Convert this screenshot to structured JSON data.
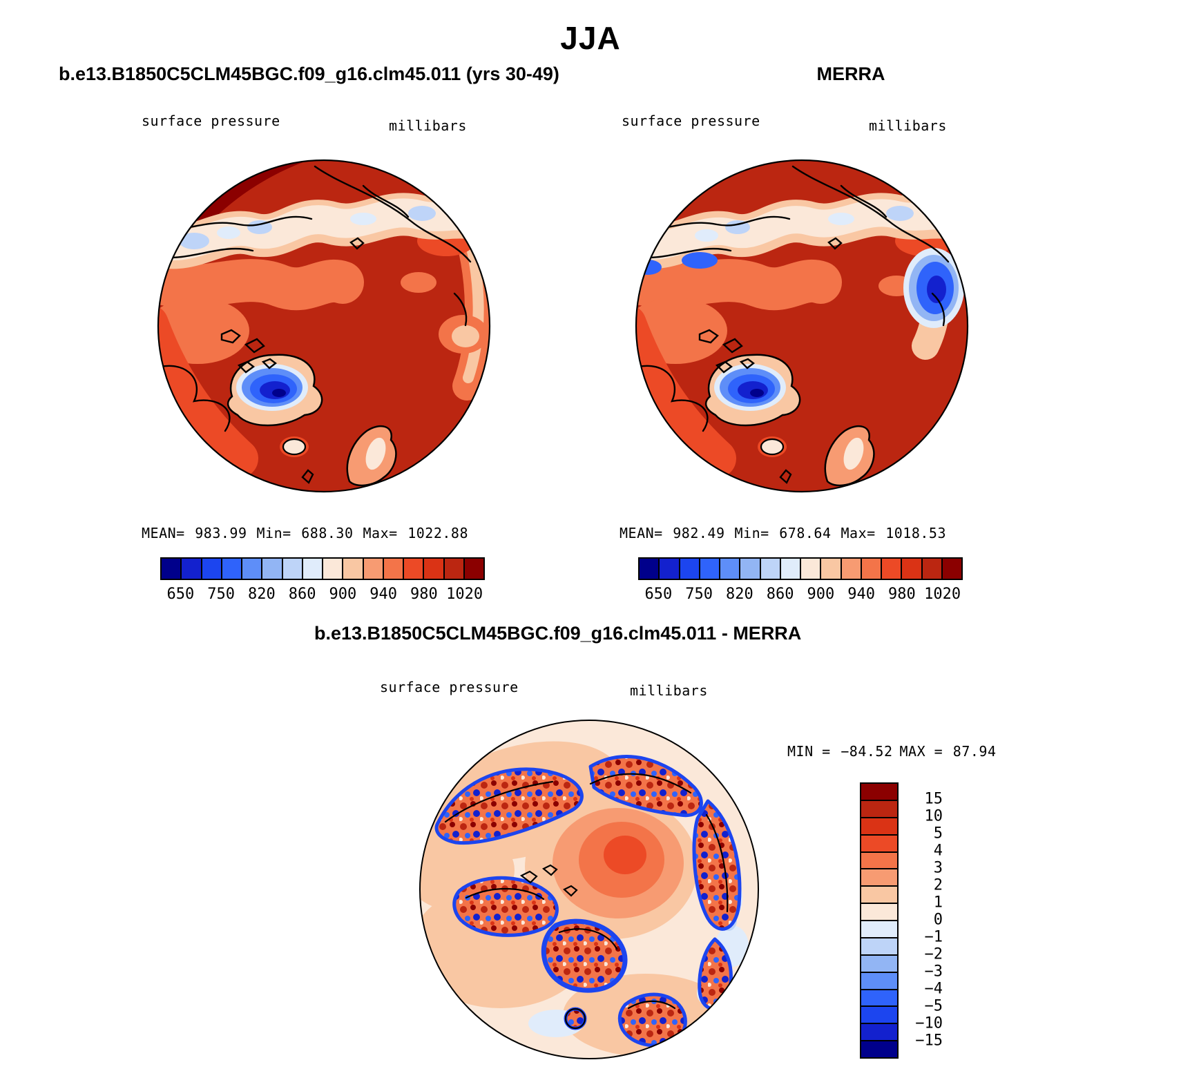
{
  "figure": {
    "season_title": "JJA"
  },
  "panels": {
    "model": {
      "title": "b.e13.B1850C5CLM45BGC.f09_g16.clm45.011 (yrs 30-49)",
      "field": "surface pressure",
      "units": "millibars",
      "stats": {
        "mean_label": "MEAN=",
        "mean": "983.99",
        "min_label": "Min=",
        "min": "688.30",
        "max_label": "Max=",
        "max": "1022.88"
      }
    },
    "merra": {
      "title": "MERRA",
      "field": "surface pressure",
      "units": "millibars",
      "stats": {
        "mean_label": "MEAN=",
        "mean": "982.49",
        "min_label": "Min=",
        "min": "678.64",
        "max_label": "Max=",
        "max": "1018.53"
      }
    },
    "diff": {
      "title": "b.e13.B1850C5CLM45BGC.f09_g16.clm45.011 - MERRA",
      "field": "surface pressure",
      "units": "millibars",
      "stats": {
        "min_label": "MIN =",
        "min": "−84.52",
        "max_label": "MAX =",
        "max": "87.94"
      }
    }
  },
  "colors": {
    "ink": "#000000",
    "background": "#FFFFFF",
    "palette_blue_to_red": [
      "#00008B",
      "#1321CE",
      "#1C45EF",
      "#2F63FB",
      "#5E8EF8",
      "#92B5F4",
      "#BED4F8",
      "#E0ECFB",
      "#FBE8D9",
      "#F9C7A3",
      "#F79B72",
      "#F37449",
      "#EC4A26",
      "#DA3315",
      "#BB2611",
      "#8B0000"
    ]
  },
  "colorbars": {
    "pressure": {
      "orientation": "horizontal",
      "colors": [
        "#00008B",
        "#1321CE",
        "#1C45EF",
        "#2F63FB",
        "#5E8EF8",
        "#92B5F4",
        "#BED4F8",
        "#E0ECFB",
        "#FBE8D9",
        "#F9C7A3",
        "#F79B72",
        "#F37449",
        "#EC4A26",
        "#DA3315",
        "#BB2611",
        "#8B0000"
      ],
      "tick_labels": [
        "650",
        "750",
        "820",
        "860",
        "900",
        "940",
        "980",
        "1020"
      ],
      "tick_boundary_indices": [
        1,
        3,
        5,
        7,
        9,
        11,
        13,
        15
      ],
      "levels": [
        650,
        700,
        750,
        800,
        820,
        840,
        860,
        880,
        900,
        920,
        940,
        960,
        980,
        1000,
        1020
      ]
    },
    "difference": {
      "orientation": "vertical",
      "colors": [
        "#8B0000",
        "#BB2611",
        "#DA3315",
        "#EC4A26",
        "#F37449",
        "#F79B72",
        "#F9C7A3",
        "#FBE8D9",
        "#E0ECFB",
        "#BED4F8",
        "#92B5F4",
        "#5E8EF8",
        "#2F63FB",
        "#1C45EF",
        "#1321CE",
        "#00008B"
      ],
      "tick_labels": [
        "15",
        "10",
        "5",
        "4",
        "3",
        "2",
        "1",
        "0",
        "−1",
        "−2",
        "−3",
        "−4",
        "−5",
        "−10",
        "−15"
      ],
      "tick_boundary_indices": [
        1,
        2,
        3,
        4,
        5,
        6,
        7,
        8,
        9,
        10,
        11,
        12,
        13,
        14,
        15
      ],
      "levels": [
        15,
        10,
        5,
        4,
        3,
        2,
        1,
        0,
        -1,
        -2,
        -3,
        -4,
        -5,
        -10,
        -15
      ]
    }
  },
  "chart_data": [
    {
      "type": "heatmap",
      "subtype": "north-polar-stereographic-filled-contour-map",
      "title": "b.e13.B1850C5CLM45BGC.f09_g16.clm45.011 (yrs 30-49)",
      "season": "JJA",
      "variable": "surface pressure",
      "units": "millibars",
      "stats": {
        "mean": 983.99,
        "min": 688.3,
        "max": 1022.88
      },
      "contour_levels": [
        650,
        700,
        750,
        800,
        820,
        840,
        860,
        880,
        900,
        920,
        940,
        960,
        980,
        1000,
        1020
      ],
      "colorbar_tick_labels": [
        "650",
        "750",
        "820",
        "860",
        "900",
        "940",
        "980",
        "1020"
      ],
      "legend_position": "below-map"
    },
    {
      "type": "heatmap",
      "subtype": "north-polar-stereographic-filled-contour-map",
      "title": "MERRA",
      "season": "JJA",
      "variable": "surface pressure",
      "units": "millibars",
      "stats": {
        "mean": 982.49,
        "min": 678.64,
        "max": 1018.53
      },
      "contour_levels": [
        650,
        700,
        750,
        800,
        820,
        840,
        860,
        880,
        900,
        920,
        940,
        960,
        980,
        1000,
        1020
      ],
      "colorbar_tick_labels": [
        "650",
        "750",
        "820",
        "860",
        "900",
        "940",
        "980",
        "1020"
      ],
      "legend_position": "below-map"
    },
    {
      "type": "heatmap",
      "subtype": "north-polar-stereographic-filled-contour-map",
      "title": "b.e13.B1850C5CLM45BGC.f09_g16.clm45.011 - MERRA",
      "season": "JJA",
      "variable": "surface pressure difference",
      "units": "millibars",
      "stats": {
        "min": -84.52,
        "max": 87.94
      },
      "contour_levels": [
        -15,
        -10,
        -5,
        -4,
        -3,
        -2,
        -1,
        0,
        1,
        2,
        3,
        4,
        5,
        10,
        15
      ],
      "legend_position": "right-of-map"
    }
  ]
}
